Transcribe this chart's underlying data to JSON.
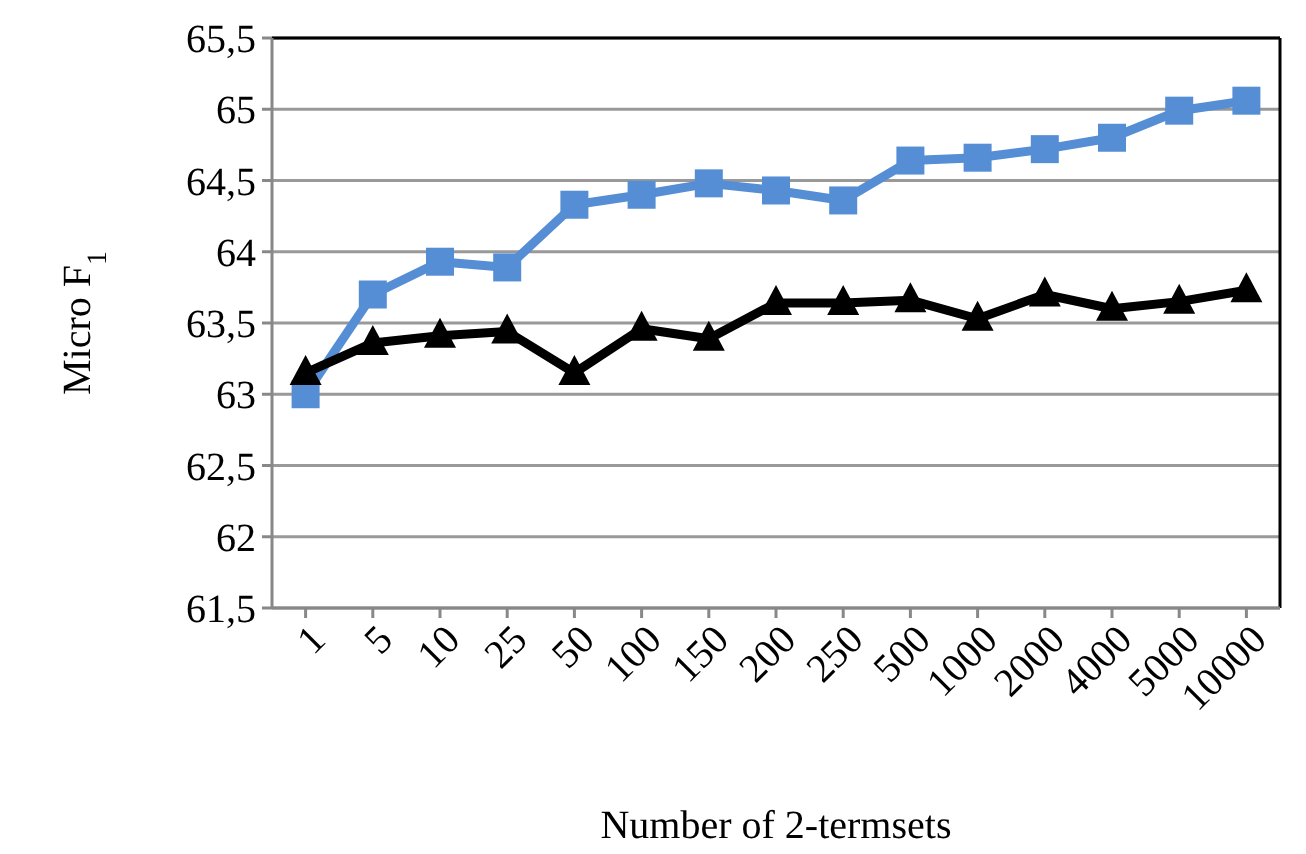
{
  "chart_data": {
    "type": "line",
    "xlabel": "Number of 2-termsets",
    "ylabel": "Micro F$_{1}$",
    "categories": [
      "1",
      "5",
      "10",
      "25",
      "50",
      "100",
      "150",
      "200",
      "250",
      "500",
      "1000",
      "2000",
      "4000",
      "5000",
      "10000"
    ],
    "series": [
      {
        "color": "#558ed5",
        "marker": "square",
        "values": [
          63.0,
          63.7,
          63.93,
          63.89,
          64.33,
          64.4,
          64.48,
          64.43,
          64.36,
          64.64,
          64.66,
          64.72,
          64.8,
          64.99,
          65.06
        ]
      },
      {
        "color": "#000000",
        "marker": "triangle",
        "values": [
          63.15,
          63.36,
          63.41,
          63.44,
          63.15,
          63.46,
          63.39,
          63.64,
          63.64,
          63.66,
          63.53,
          63.7,
          63.6,
          63.65,
          63.73
        ]
      }
    ],
    "ylim": [
      61.5,
      65.5
    ],
    "yticks": [
      {
        "value": 61.5,
        "label": "61,5"
      },
      62,
      {
        "value": 62.5,
        "label": "62,5"
      },
      63,
      {
        "value": 63.5,
        "label": "63,5"
      },
      64,
      {
        "value": 64.5,
        "label": "64,5"
      },
      65,
      {
        "value": 65.5,
        "label": "65,5"
      }
    ],
    "grid": "y"
  }
}
